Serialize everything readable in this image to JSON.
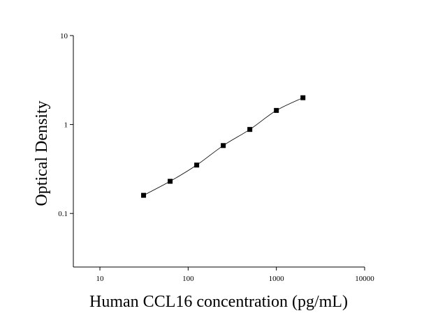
{
  "chart_data": {
    "type": "scatter",
    "x_label": "Human CCL16 concentration (pg/mL)",
    "y_label": "Optical Density",
    "x": [
      31.25,
      62.5,
      125,
      250,
      500,
      1000,
      2000
    ],
    "values": [
      0.16,
      0.23,
      0.35,
      0.58,
      0.88,
      1.44,
      2.0
    ],
    "color": "#000000",
    "x_log": true,
    "y_log": true,
    "xlim": [
      5,
      10000
    ],
    "xticks": [
      10,
      100,
      1000,
      10000
    ],
    "ylim": [
      0.025,
      10
    ],
    "yticks": [
      0.1,
      1,
      10
    ],
    "fit_curve": true
  }
}
